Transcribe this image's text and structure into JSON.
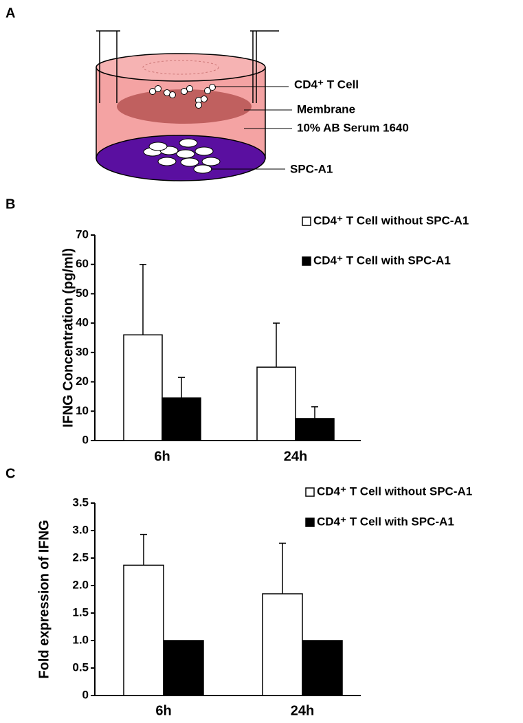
{
  "panel_labels": [
    "A",
    "B",
    "C"
  ],
  "diagram": {
    "labels": [
      "CD4⁺ T Cell",
      "Membrane",
      "10% AB Serum 1640",
      "SPC-A1"
    ]
  },
  "chart_data": [
    {
      "type": "bar",
      "ylabel": "IFNG Concentration (pg/ml)",
      "categories": [
        "6h",
        "24h"
      ],
      "series": [
        {
          "name": "CD4⁺ T Cell without SPC-A1",
          "color": "#ffffff",
          "values": [
            36,
            25
          ],
          "errors": [
            24,
            15
          ]
        },
        {
          "name": "CD4⁺ T Cell with SPC-A1",
          "color": "#000000",
          "values": [
            14.5,
            7.5
          ],
          "errors": [
            7,
            4
          ]
        }
      ],
      "ylim": [
        0,
        70
      ],
      "yticks": [
        0,
        10,
        20,
        30,
        40,
        50,
        60,
        70
      ],
      "grid": false
    },
    {
      "type": "bar",
      "ylabel": "Fold expression of IFNG",
      "categories": [
        "6h",
        "24h"
      ],
      "series": [
        {
          "name": "CD4⁺ T Cell without SPC-A1",
          "color": "#ffffff",
          "values": [
            2.37,
            1.85
          ],
          "errors": [
            0.56,
            0.92
          ]
        },
        {
          "name": "CD4⁺ T Cell with SPC-A1",
          "color": "#000000",
          "values": [
            1,
            1
          ]
        }
      ],
      "ylim": [
        0,
        3.5
      ],
      "yticks": [
        0,
        0.5,
        {
          "value": 1,
          "label": "1.0"
        },
        1.5,
        {
          "value": 2,
          "label": "2.0"
        },
        2.5,
        {
          "value": 3,
          "label": "3.0"
        },
        3.5
      ],
      "grid": false
    }
  ]
}
